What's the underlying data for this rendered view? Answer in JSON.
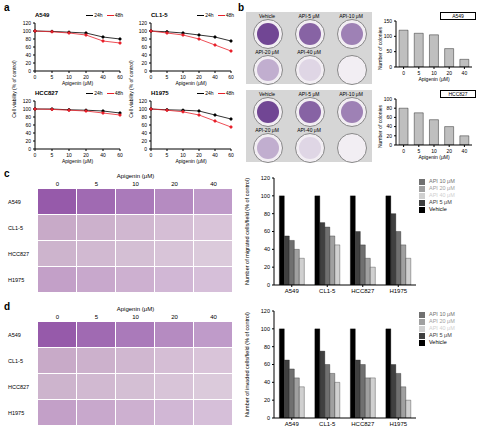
{
  "chart_data": [
    {
      "panel": "a",
      "type": "line",
      "title": "A549",
      "categories": [
        "0",
        "5",
        "10",
        "20",
        "40",
        "60"
      ],
      "x_label": "Apigenin (μM)",
      "y_label": "Cell viability (% of control)",
      "ylim": [
        0,
        120
      ],
      "yticks": [
        0,
        20,
        40,
        60,
        80,
        100,
        120
      ],
      "legend": "top right",
      "series": [
        {
          "name": "24h",
          "color": "#000000",
          "marker": "circle",
          "values": [
            100,
            99,
            97,
            95,
            85,
            80
          ]
        },
        {
          "name": "48h",
          "color": "#e8202a",
          "marker": "circle",
          "values": [
            100,
            98,
            95,
            90,
            75,
            70
          ]
        }
      ]
    },
    {
      "panel": "a",
      "type": "line",
      "title": "CL1-5",
      "categories": [
        "0",
        "5",
        "10",
        "20",
        "40",
        "60"
      ],
      "x_label": "Apigenin (μM)",
      "y_label": "Cell viability (% of control)",
      "ylim": [
        0,
        120
      ],
      "yticks": [
        0,
        20,
        40,
        60,
        80,
        100,
        120
      ],
      "legend": "top right",
      "series": [
        {
          "name": "24h",
          "color": "#000000",
          "marker": "circle",
          "values": [
            100,
            98,
            95,
            90,
            85,
            75
          ]
        },
        {
          "name": "48h",
          "color": "#e8202a",
          "marker": "circle",
          "values": [
            100,
            95,
            90,
            80,
            65,
            50
          ]
        }
      ]
    },
    {
      "panel": "a",
      "type": "line",
      "title": "HCC827",
      "categories": [
        "0",
        "5",
        "10",
        "20",
        "40",
        "60"
      ],
      "x_label": "Apigenin (μM)",
      "y_label": "Cell viability (% of control)",
      "ylim": [
        0,
        120
      ],
      "yticks": [
        0,
        20,
        40,
        60,
        80,
        100,
        120
      ],
      "legend": "top right",
      "series": [
        {
          "name": "24h",
          "color": "#000000",
          "marker": "circle",
          "values": [
            100,
            100,
            98,
            97,
            95,
            90
          ]
        },
        {
          "name": "48h",
          "color": "#e8202a",
          "marker": "circle",
          "values": [
            100,
            99,
            97,
            95,
            90,
            85
          ]
        }
      ]
    },
    {
      "panel": "a",
      "type": "line",
      "title": "H1975",
      "categories": [
        "0",
        "5",
        "10",
        "20",
        "40",
        "60"
      ],
      "x_label": "Apigenin (μM)",
      "y_label": "Cell viability (% of control)",
      "ylim": [
        0,
        120
      ],
      "yticks": [
        0,
        20,
        40,
        60,
        80,
        100,
        120
      ],
      "legend": "top right",
      "series": [
        {
          "name": "24h",
          "color": "#000000",
          "marker": "circle",
          "values": [
            100,
            98,
            97,
            95,
            85,
            75
          ]
        },
        {
          "name": "48h",
          "color": "#e8202a",
          "marker": "circle",
          "values": [
            100,
            97,
            93,
            85,
            70,
            55
          ]
        }
      ]
    },
    {
      "panel": "b",
      "type": "bar",
      "title": "A549",
      "categories": [
        "0",
        "5",
        "10",
        "20",
        "40"
      ],
      "values": [
        120,
        110,
        105,
        60,
        25
      ],
      "color": "#bfbfbf",
      "x_label": "Apigenin (μM)",
      "y_label": "Number of colonies",
      "ylim": [
        0,
        150
      ],
      "yticks": [
        0,
        50,
        100,
        150
      ]
    },
    {
      "panel": "b",
      "type": "bar",
      "title": "HCC827",
      "categories": [
        "0",
        "5",
        "10",
        "20",
        "40"
      ],
      "values": [
        80,
        70,
        55,
        40,
        20
      ],
      "color": "#bfbfbf",
      "x_label": "Apigenin (μM)",
      "y_label": "Number of colonies",
      "ylim": [
        0,
        100
      ],
      "yticks": [
        0,
        20,
        40,
        60,
        80,
        100
      ]
    },
    {
      "panel": "c",
      "type": "bar",
      "categories": [
        "A549",
        "CL1-5",
        "HCC827",
        "H1975"
      ],
      "y_label": "Number of migrated cells/field (% of control)",
      "ylim": [
        0,
        120
      ],
      "yticks": [
        0,
        20,
        40,
        60,
        80,
        100,
        120
      ],
      "legend": "right",
      "series": [
        {
          "name": "Vehicle",
          "color": "#000000",
          "values": [
            100,
            100,
            100,
            100
          ]
        },
        {
          "name": "API 5 μM",
          "color": "#404040",
          "values": [
            55,
            70,
            60,
            80
          ]
        },
        {
          "name": "API 10 μM",
          "color": "#707070",
          "values": [
            50,
            65,
            45,
            60
          ]
        },
        {
          "name": "API 20 μM",
          "color": "#a0a0a0",
          "values": [
            40,
            55,
            30,
            45
          ]
        },
        {
          "name": "API 40 μM",
          "color": "#d0d0d0",
          "values": [
            30,
            45,
            20,
            30
          ]
        }
      ]
    },
    {
      "panel": "d",
      "type": "bar",
      "categories": [
        "A549",
        "CL1-5",
        "HCC827",
        "H1975"
      ],
      "y_label": "Number of invaded cells/field (% of control)",
      "ylim": [
        0,
        120
      ],
      "yticks": [
        0,
        20,
        40,
        60,
        80,
        100,
        120
      ],
      "legend": "right",
      "series": [
        {
          "name": "Vehicle",
          "color": "#000000",
          "values": [
            100,
            100,
            100,
            100
          ]
        },
        {
          "name": "API 5 μM",
          "color": "#404040",
          "values": [
            65,
            75,
            65,
            60
          ]
        },
        {
          "name": "API 10 μM",
          "color": "#707070",
          "values": [
            55,
            60,
            60,
            50
          ]
        },
        {
          "name": "API 20 μM",
          "color": "#a0a0a0",
          "values": [
            45,
            50,
            45,
            35
          ]
        },
        {
          "name": "API 40 μM",
          "color": "#d0d0d0",
          "values": [
            35,
            40,
            45,
            20
          ]
        }
      ]
    }
  ],
  "image_panels": [
    {
      "panel": "b",
      "wells": [
        "Vehicle",
        "API-5 μM",
        "API-10 μM",
        "API-20 μM",
        "API-40 μM"
      ]
    },
    {
      "panel": "c",
      "title": "Apigenin (μM)",
      "columns": [
        "0",
        "5",
        "10",
        "20",
        "40"
      ],
      "rows": [
        "A549",
        "CL1-5",
        "HCC827",
        "H1975"
      ]
    },
    {
      "panel": "d",
      "title": "Apigenin (μM)",
      "columns": [
        "0",
        "5",
        "10",
        "20",
        "40"
      ],
      "rows": [
        "A549",
        "CL1-5",
        "HCC827",
        "H1975"
      ]
    }
  ]
}
